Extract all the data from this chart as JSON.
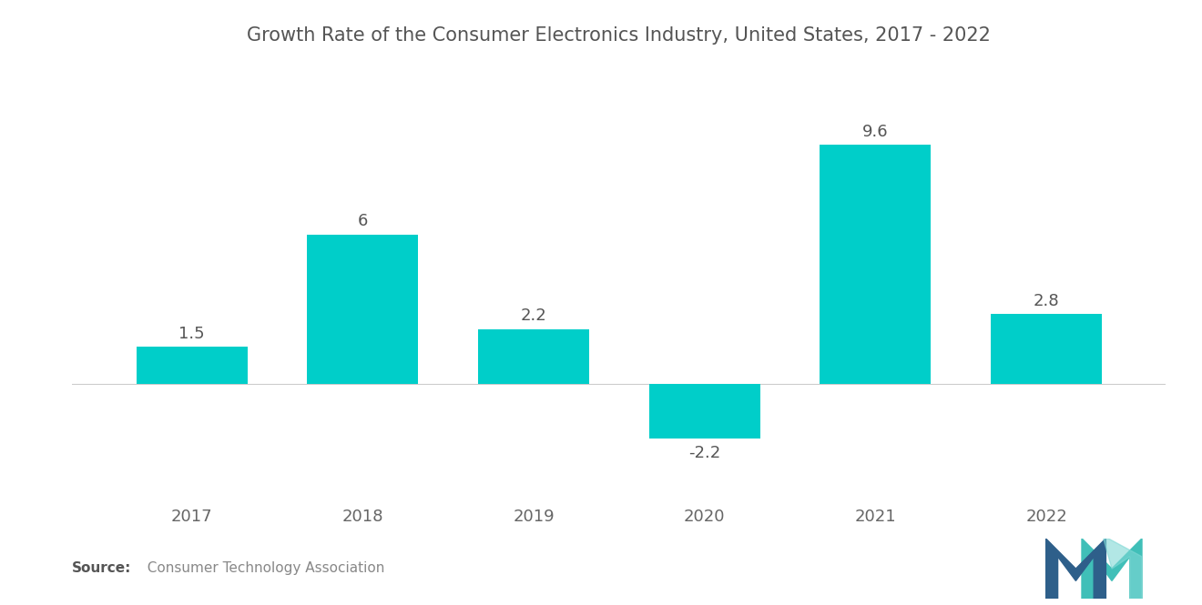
{
  "title": "Growth Rate of the Consumer Electronics Industry, United States, 2017 - 2022",
  "categories": [
    "2017",
    "2018",
    "2019",
    "2020",
    "2021",
    "2022"
  ],
  "values": [
    1.5,
    6.0,
    2.2,
    -2.2,
    9.6,
    2.8
  ],
  "bar_color": "#00CEC9",
  "background_color": "#ffffff",
  "title_fontsize": 15,
  "label_fontsize": 13,
  "tick_fontsize": 13,
  "source_bold": "Source:",
  "source_normal": "  Consumer Technology Association",
  "ylim": [
    -4.5,
    12.5
  ],
  "bar_width": 0.65
}
